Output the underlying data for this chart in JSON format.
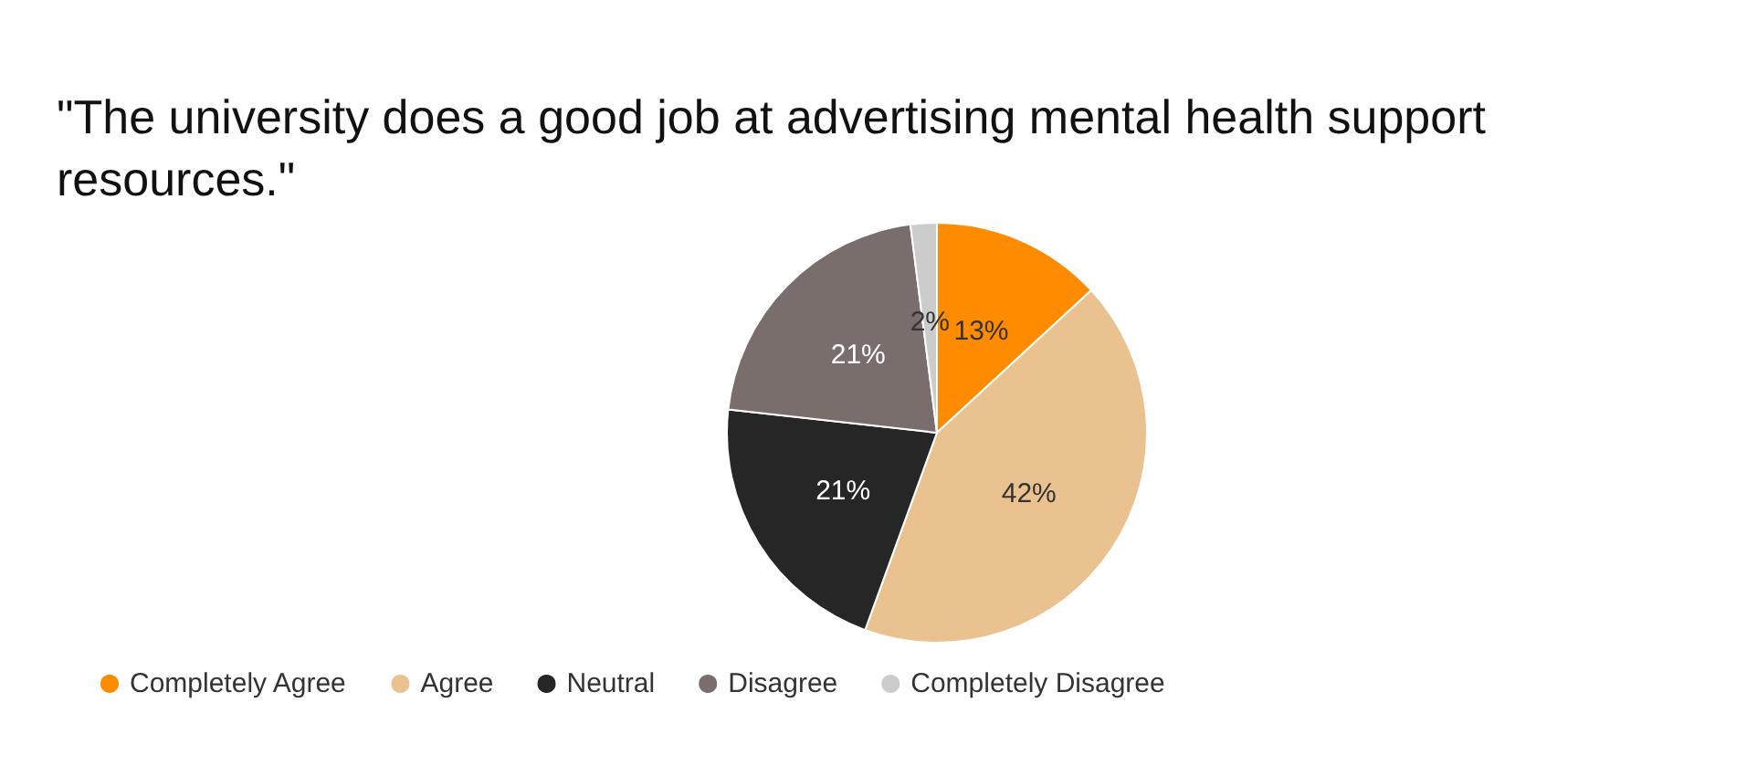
{
  "chart_data": {
    "type": "pie",
    "title": "\"The university does a good job at advertising mental health support resources.\"",
    "categories": [
      "Completely Agree",
      "Agree",
      "Neutral",
      "Disagree",
      "Completely Disagree"
    ],
    "values": [
      13,
      42,
      21,
      21,
      2
    ],
    "colors": [
      "#ff8c00",
      "#eac28f",
      "#262626",
      "#7a6e6c",
      "#cccccc"
    ],
    "value_labels": [
      "13%",
      "42%",
      "21%",
      "21%",
      "2%"
    ],
    "legend": "bottom"
  }
}
